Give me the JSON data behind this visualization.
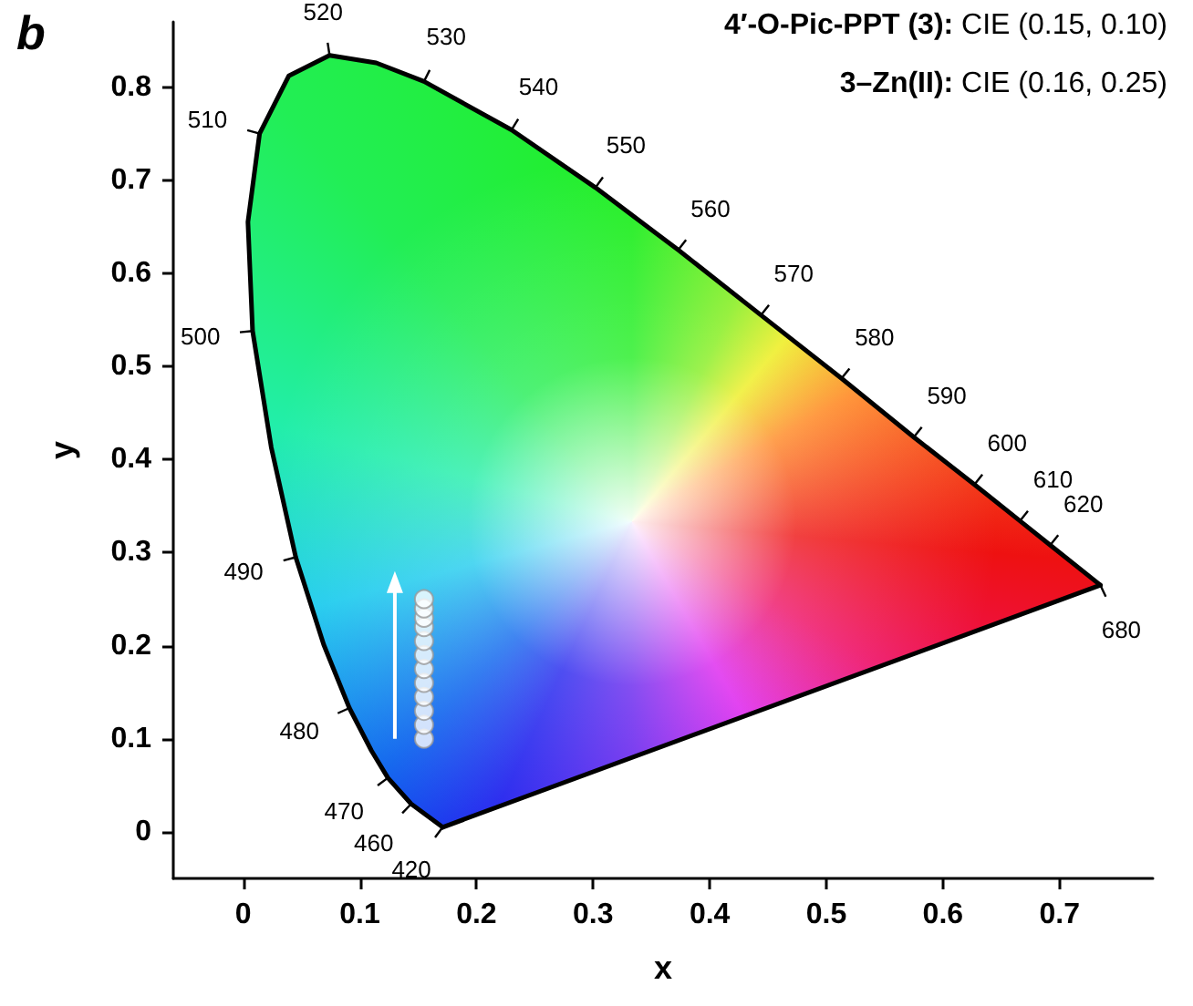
{
  "chart_data": {
    "type": "scatter",
    "title": "b",
    "xlabel": "x",
    "ylabel": "y",
    "xlim": [
      -0.06,
      0.78
    ],
    "ylim": [
      -0.05,
      0.87
    ],
    "xticks": [
      0,
      0.1,
      0.2,
      0.3,
      0.4,
      0.5,
      0.6,
      0.7
    ],
    "yticks": [
      0,
      0.1,
      0.2,
      0.3,
      0.4,
      0.5,
      0.6,
      0.7,
      0.8
    ],
    "grid": false,
    "series": [
      {
        "type": "line",
        "color": "#000000",
        "marker": "none",
        "x": [
          0.171,
          0.157,
          0.144,
          0.124,
          0.11,
          0.091,
          0.069,
          0.045,
          0.024,
          0.008,
          0.004,
          0.014,
          0.039,
          0.074,
          0.114,
          0.155,
          0.23,
          0.302,
          0.373,
          0.444,
          0.513,
          0.575,
          0.627,
          0.666,
          0.692,
          0.735
        ],
        "values": [
          0.005,
          0.018,
          0.03,
          0.058,
          0.087,
          0.133,
          0.201,
          0.295,
          0.413,
          0.538,
          0.655,
          0.75,
          0.812,
          0.834,
          0.826,
          0.806,
          0.754,
          0.692,
          0.625,
          0.555,
          0.487,
          0.424,
          0.373,
          0.334,
          0.308,
          0.265
        ]
      },
      {
        "type": "line",
        "color": "#000000",
        "marker": "none",
        "x": [
          0.171,
          0.735
        ],
        "values": [
          0.005,
          0.265
        ]
      },
      {
        "type": "scatter",
        "color": "#ffffff",
        "marker": "circle",
        "x": [
          0.155,
          0.155,
          0.155,
          0.155,
          0.155,
          0.155,
          0.155,
          0.155,
          0.155,
          0.155,
          0.155,
          0.155
        ],
        "values": [
          0.1,
          0.115,
          0.13,
          0.145,
          0.16,
          0.175,
          0.19,
          0.205,
          0.22,
          0.23,
          0.24,
          0.25
        ]
      }
    ],
    "annotations": [
      "4′-O-Pic-PPT (3): CIE (0.15, 0.10)",
      "3–Zn(II): CIE (0.16, 0.25)",
      {
        "text": "420",
        "x": 0.171,
        "y": 0.005
      },
      {
        "text": "460",
        "x": 0.144,
        "y": 0.03
      },
      {
        "text": "470",
        "x": 0.124,
        "y": 0.058
      },
      {
        "text": "480",
        "x": 0.091,
        "y": 0.133
      },
      {
        "text": "490",
        "x": 0.045,
        "y": 0.295
      },
      {
        "text": "500",
        "x": 0.008,
        "y": 0.538
      },
      {
        "text": "510",
        "x": 0.014,
        "y": 0.75
      },
      {
        "text": "520",
        "x": 0.074,
        "y": 0.834
      },
      {
        "text": "530",
        "x": 0.155,
        "y": 0.806
      },
      {
        "text": "540",
        "x": 0.23,
        "y": 0.754
      },
      {
        "text": "550",
        "x": 0.302,
        "y": 0.692
      },
      {
        "text": "560",
        "x": 0.373,
        "y": 0.625
      },
      {
        "text": "570",
        "x": 0.444,
        "y": 0.555
      },
      {
        "text": "580",
        "x": 0.513,
        "y": 0.487
      },
      {
        "text": "590",
        "x": 0.575,
        "y": 0.424
      },
      {
        "text": "600",
        "x": 0.627,
        "y": 0.373
      },
      {
        "text": "610",
        "x": 0.666,
        "y": 0.334
      },
      {
        "text": "620",
        "x": 0.692,
        "y": 0.308
      },
      {
        "text": "680",
        "x": 0.735,
        "y": 0.265
      }
    ]
  }
}
